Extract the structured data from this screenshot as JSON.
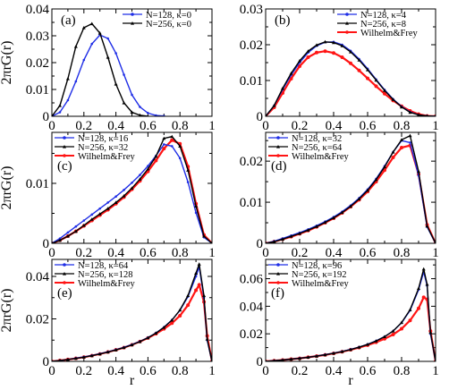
{
  "colors": {
    "blue": "#1f2ee6",
    "black": "#000000",
    "red": "#ff1414"
  },
  "chart_data": [
    {
      "type": "line",
      "panel_label": "(a)",
      "ylabel": "2πrG(r)",
      "xlabel": "",
      "xlim": [
        0,
        1
      ],
      "ylim": [
        0,
        0.04
      ],
      "xticks": [
        "0",
        "0.2",
        "0.4",
        "0.6",
        "0.8",
        "1"
      ],
      "yticks": [
        {
          "v": 0,
          "t": "0"
        },
        {
          "v": 0.01,
          "t": "0.01"
        },
        {
          "v": 0.02,
          "t": "0.02"
        },
        {
          "v": 0.03,
          "t": "0.03"
        },
        {
          "v": 0.04,
          "t": "0.04"
        }
      ],
      "legend": "top-right",
      "series": [
        {
          "name": "N=128, κ=0",
          "color": "blue",
          "x": [
            0,
            0.05,
            0.1,
            0.15,
            0.2,
            0.25,
            0.3,
            0.35,
            0.4,
            0.45,
            0.5,
            0.55,
            0.6,
            0.65,
            0.7
          ],
          "y": [
            0,
            0.0015,
            0.006,
            0.013,
            0.021,
            0.027,
            0.0303,
            0.029,
            0.0235,
            0.0155,
            0.008,
            0.0035,
            0.0012,
            0.0003,
            0.0001
          ]
        },
        {
          "name": "N=256, κ=0",
          "color": "black",
          "x": [
            0,
            0.05,
            0.1,
            0.15,
            0.2,
            0.25,
            0.3,
            0.35,
            0.4,
            0.45,
            0.5,
            0.55,
            0.6
          ],
          "y": [
            0,
            0.004,
            0.014,
            0.026,
            0.033,
            0.0345,
            0.031,
            0.022,
            0.012,
            0.005,
            0.0015,
            0.0004,
            0
          ]
        }
      ]
    },
    {
      "type": "line",
      "panel_label": "(b)",
      "ylabel": "",
      "xlabel": "",
      "xlim": [
        0,
        1
      ],
      "ylim": [
        0,
        0.03
      ],
      "xticks": [
        "0",
        "0.2",
        "0.4",
        "0.6",
        "0.8",
        "1"
      ],
      "yticks": [
        {
          "v": 0,
          "t": "0"
        },
        {
          "v": 0.01,
          "t": "0.01"
        },
        {
          "v": 0.02,
          "t": "0.02"
        },
        {
          "v": 0.03,
          "t": "0.03"
        }
      ],
      "legend": "top-right",
      "series": [
        {
          "name": "N=128, κ=4",
          "color": "blue",
          "x": [
            0,
            0.05,
            0.1,
            0.15,
            0.2,
            0.25,
            0.3,
            0.35,
            0.4,
            0.45,
            0.5,
            0.55,
            0.6,
            0.65,
            0.7,
            0.75,
            0.8,
            0.85,
            0.9,
            0.95,
            1
          ],
          "y": [
            0,
            0.003,
            0.0075,
            0.0115,
            0.015,
            0.0178,
            0.0197,
            0.0207,
            0.0208,
            0.02,
            0.0183,
            0.016,
            0.0133,
            0.0103,
            0.0074,
            0.0048,
            0.0027,
            0.0012,
            0.0004,
            0.0001,
            0
          ]
        },
        {
          "name": "N=256, κ=8",
          "color": "black",
          "x": [
            0,
            0.05,
            0.1,
            0.15,
            0.2,
            0.25,
            0.3,
            0.35,
            0.4,
            0.45,
            0.5,
            0.55,
            0.6,
            0.65,
            0.7,
            0.75,
            0.8,
            0.85,
            0.9,
            0.95,
            1
          ],
          "y": [
            0,
            0.003,
            0.0078,
            0.012,
            0.0155,
            0.0182,
            0.0199,
            0.0208,
            0.0206,
            0.0197,
            0.018,
            0.0157,
            0.013,
            0.0101,
            0.0072,
            0.0047,
            0.0026,
            0.0011,
            0.0004,
            0.0001,
            0
          ]
        },
        {
          "name": "Wilhelm&Frey",
          "color": "red",
          "x": [
            0,
            0.05,
            0.1,
            0.15,
            0.2,
            0.25,
            0.3,
            0.35,
            0.4,
            0.45,
            0.5,
            0.55,
            0.6,
            0.65,
            0.7,
            0.75,
            0.8,
            0.85,
            0.9,
            0.95,
            1
          ],
          "y": [
            0,
            0.0025,
            0.0065,
            0.0105,
            0.014,
            0.0165,
            0.0178,
            0.0182,
            0.0177,
            0.0165,
            0.0148,
            0.0128,
            0.0106,
            0.0084,
            0.0063,
            0.0044,
            0.0028,
            0.0015,
            0.0006,
            0.0001,
            0
          ]
        }
      ]
    },
    {
      "type": "line",
      "panel_label": "(c)",
      "ylabel": "2πrG(r)",
      "xlabel": "",
      "xlim": [
        0,
        1
      ],
      "ylim": [
        0,
        0.0185
      ],
      "xticks": [
        "0",
        "0.2",
        "0.4",
        "0.6",
        "0.8",
        "1"
      ],
      "yticks": [
        {
          "v": 0,
          "t": "0"
        },
        {
          "v": 0.01,
          "t": "0.01"
        }
      ],
      "legend": "top-left",
      "series": [
        {
          "name": "N=128, κ=16",
          "color": "blue",
          "x": [
            0,
            0.05,
            0.1,
            0.15,
            0.2,
            0.25,
            0.3,
            0.35,
            0.4,
            0.45,
            0.5,
            0.55,
            0.6,
            0.65,
            0.7,
            0.75,
            0.8,
            0.85,
            0.9,
            0.95,
            1
          ],
          "y": [
            0,
            0.0008,
            0.0018,
            0.0028,
            0.0038,
            0.0048,
            0.0058,
            0.0068,
            0.0078,
            0.0089,
            0.0101,
            0.0114,
            0.0129,
            0.0146,
            0.0165,
            0.0162,
            0.0142,
            0.0102,
            0.0051,
            0.001,
            0
          ]
        },
        {
          "name": "N=256, κ=32",
          "color": "black",
          "x": [
            0,
            0.05,
            0.1,
            0.15,
            0.2,
            0.25,
            0.3,
            0.35,
            0.4,
            0.45,
            0.5,
            0.55,
            0.6,
            0.65,
            0.7,
            0.75,
            0.8,
            0.85,
            0.9,
            0.95,
            1
          ],
          "y": [
            0,
            0.0005,
            0.0012,
            0.002,
            0.003,
            0.004,
            0.0049,
            0.0058,
            0.0068,
            0.0079,
            0.0092,
            0.0107,
            0.0124,
            0.0145,
            0.0175,
            0.0178,
            0.0162,
            0.0122,
            0.0062,
            0.0012,
            0
          ]
        },
        {
          "name": "Wilhelm&Frey",
          "color": "red",
          "x": [
            0,
            0.05,
            0.1,
            0.15,
            0.2,
            0.25,
            0.3,
            0.35,
            0.4,
            0.45,
            0.5,
            0.55,
            0.6,
            0.65,
            0.7,
            0.75,
            0.8,
            0.85,
            0.9,
            0.95,
            1
          ],
          "y": [
            0,
            0.0005,
            0.0012,
            0.002,
            0.0029,
            0.0038,
            0.0047,
            0.0056,
            0.0066,
            0.0077,
            0.009,
            0.0104,
            0.012,
            0.0138,
            0.0158,
            0.0172,
            0.0166,
            0.0128,
            0.0066,
            0.0014,
            0
          ]
        }
      ]
    },
    {
      "type": "line",
      "panel_label": "(d)",
      "ylabel": "",
      "xlabel": "",
      "xlim": [
        0,
        1
      ],
      "ylim": [
        0,
        0.027
      ],
      "xticks": [
        "0",
        "0.2",
        "0.4",
        "0.6",
        "0.8",
        "1"
      ],
      "yticks": [
        {
          "v": 0,
          "t": "0"
        },
        {
          "v": 0.01,
          "t": "0.01"
        },
        {
          "v": 0.02,
          "t": "0.02"
        }
      ],
      "legend": "top-left",
      "series": [
        {
          "name": "N=128, κ=32",
          "color": "blue",
          "x": [
            0,
            0.05,
            0.1,
            0.15,
            0.2,
            0.25,
            0.3,
            0.35,
            0.4,
            0.45,
            0.5,
            0.55,
            0.6,
            0.65,
            0.7,
            0.75,
            0.8,
            0.85,
            0.9,
            0.95,
            1
          ],
          "y": [
            0,
            0.0005,
            0.0012,
            0.0019,
            0.0026,
            0.0034,
            0.0043,
            0.0053,
            0.0064,
            0.0077,
            0.0092,
            0.011,
            0.0131,
            0.0157,
            0.0188,
            0.0222,
            0.025,
            0.0245,
            0.0165,
            0.004,
            0
          ]
        },
        {
          "name": "N=256, κ=64",
          "color": "black",
          "x": [
            0,
            0.05,
            0.1,
            0.15,
            0.2,
            0.25,
            0.3,
            0.35,
            0.4,
            0.45,
            0.5,
            0.55,
            0.6,
            0.65,
            0.7,
            0.75,
            0.8,
            0.85,
            0.9,
            0.95,
            1
          ],
          "y": [
            0,
            0.0004,
            0.001,
            0.0017,
            0.0024,
            0.0032,
            0.0041,
            0.0051,
            0.0062,
            0.0075,
            0.009,
            0.0108,
            0.0129,
            0.0155,
            0.0186,
            0.0222,
            0.0252,
            0.0262,
            0.0175,
            0.0042,
            0
          ]
        },
        {
          "name": "Wilhelm&Frey",
          "color": "red",
          "x": [
            0,
            0.05,
            0.1,
            0.15,
            0.2,
            0.25,
            0.3,
            0.35,
            0.4,
            0.45,
            0.5,
            0.55,
            0.6,
            0.65,
            0.7,
            0.75,
            0.8,
            0.85,
            0.9,
            0.95,
            1
          ],
          "y": [
            0,
            0.0004,
            0.001,
            0.0016,
            0.0023,
            0.0031,
            0.004,
            0.005,
            0.0061,
            0.0074,
            0.0089,
            0.0106,
            0.0126,
            0.015,
            0.0178,
            0.0209,
            0.0233,
            0.0238,
            0.0168,
            0.0045,
            0
          ]
        }
      ]
    },
    {
      "type": "line",
      "panel_label": "(e)",
      "ylabel": "2πrG(r)",
      "xlabel": "r",
      "xlim": [
        0,
        1
      ],
      "ylim": [
        0,
        0.048
      ],
      "xticks": [
        "0",
        "0.2",
        "0.4",
        "0.6",
        "0.8",
        "1"
      ],
      "yticks": [
        {
          "v": 0,
          "t": "0"
        },
        {
          "v": 0.02,
          "t": "0.02"
        },
        {
          "v": 0.04,
          "t": "0.04"
        }
      ],
      "legend": "top-left",
      "series": [
        {
          "name": "N=128, κ=64",
          "color": "blue",
          "x": [
            0,
            0.05,
            0.1,
            0.15,
            0.2,
            0.25,
            0.3,
            0.35,
            0.4,
            0.45,
            0.5,
            0.55,
            0.6,
            0.65,
            0.7,
            0.75,
            0.8,
            0.85,
            0.9,
            0.92,
            0.95,
            0.97,
            1
          ],
          "y": [
            0,
            0.0004,
            0.0009,
            0.0015,
            0.0021,
            0.0028,
            0.0036,
            0.0045,
            0.0055,
            0.0066,
            0.0079,
            0.0094,
            0.0112,
            0.0134,
            0.0161,
            0.0195,
            0.024,
            0.0305,
            0.04,
            0.0445,
            0.03,
            0.01,
            0
          ]
        },
        {
          "name": "N=256, κ=128",
          "color": "black",
          "x": [
            0,
            0.05,
            0.1,
            0.15,
            0.2,
            0.25,
            0.3,
            0.35,
            0.4,
            0.45,
            0.5,
            0.55,
            0.6,
            0.65,
            0.7,
            0.75,
            0.8,
            0.85,
            0.9,
            0.92,
            0.95,
            0.97,
            1
          ],
          "y": [
            0,
            0.0004,
            0.0009,
            0.0014,
            0.002,
            0.0027,
            0.0035,
            0.0044,
            0.0054,
            0.0065,
            0.0078,
            0.0093,
            0.0111,
            0.0133,
            0.016,
            0.0194,
            0.0242,
            0.031,
            0.0415,
            0.0458,
            0.031,
            0.0105,
            0
          ]
        },
        {
          "name": "Wilhelm&Frey",
          "color": "red",
          "x": [
            0,
            0.05,
            0.1,
            0.15,
            0.2,
            0.25,
            0.3,
            0.35,
            0.4,
            0.45,
            0.5,
            0.55,
            0.6,
            0.65,
            0.7,
            0.75,
            0.8,
            0.85,
            0.9,
            0.92,
            0.95,
            0.97,
            1
          ],
          "y": [
            0,
            0.0004,
            0.0009,
            0.0014,
            0.002,
            0.0027,
            0.0035,
            0.0044,
            0.0054,
            0.0065,
            0.0078,
            0.0093,
            0.011,
            0.013,
            0.0153,
            0.018,
            0.0215,
            0.0265,
            0.0335,
            0.036,
            0.028,
            0.012,
            0
          ]
        }
      ]
    },
    {
      "type": "line",
      "panel_label": "(f)",
      "ylabel": "",
      "xlabel": "r",
      "xlim": [
        0,
        1
      ],
      "ylim": [
        0,
        0.074
      ],
      "xticks": [
        "0",
        "0.2",
        "0.4",
        "0.6",
        "0.8",
        "1"
      ],
      "yticks": [
        {
          "v": 0,
          "t": "0"
        },
        {
          "v": 0.02,
          "t": "0.02"
        },
        {
          "v": 0.04,
          "t": "0.04"
        },
        {
          "v": 0.06,
          "t": "0.06"
        }
      ],
      "legend": "top-left",
      "series": [
        {
          "name": "N=128, κ=96",
          "color": "blue",
          "x": [
            0,
            0.05,
            0.1,
            0.15,
            0.2,
            0.25,
            0.3,
            0.35,
            0.4,
            0.45,
            0.5,
            0.55,
            0.6,
            0.65,
            0.7,
            0.75,
            0.8,
            0.85,
            0.9,
            0.93,
            0.95,
            0.97,
            1
          ],
          "y": [
            0,
            0.0005,
            0.001,
            0.0016,
            0.0023,
            0.003,
            0.0039,
            0.0049,
            0.006,
            0.0072,
            0.0087,
            0.0104,
            0.0124,
            0.0149,
            0.018,
            0.022,
            0.028,
            0.037,
            0.052,
            0.065,
            0.055,
            0.02,
            0
          ]
        },
        {
          "name": "N=256, κ=192",
          "color": "black",
          "x": [
            0,
            0.05,
            0.1,
            0.15,
            0.2,
            0.25,
            0.3,
            0.35,
            0.4,
            0.45,
            0.5,
            0.55,
            0.6,
            0.65,
            0.7,
            0.75,
            0.8,
            0.85,
            0.9,
            0.93,
            0.95,
            0.97,
            1
          ],
          "y": [
            0,
            0.0005,
            0.001,
            0.0016,
            0.0022,
            0.003,
            0.0038,
            0.0048,
            0.0059,
            0.0071,
            0.0086,
            0.0103,
            0.0123,
            0.0148,
            0.0179,
            0.022,
            0.0282,
            0.0375,
            0.053,
            0.067,
            0.056,
            0.021,
            0
          ]
        },
        {
          "name": "Wilhelm&Frey",
          "color": "red",
          "x": [
            0,
            0.05,
            0.1,
            0.15,
            0.2,
            0.25,
            0.3,
            0.35,
            0.4,
            0.45,
            0.5,
            0.55,
            0.6,
            0.65,
            0.7,
            0.75,
            0.8,
            0.85,
            0.9,
            0.93,
            0.95,
            0.97,
            1
          ],
          "y": [
            0,
            0.0005,
            0.001,
            0.0016,
            0.0022,
            0.003,
            0.0038,
            0.0047,
            0.0058,
            0.007,
            0.0084,
            0.01,
            0.0118,
            0.0139,
            0.0164,
            0.0195,
            0.0237,
            0.0297,
            0.0385,
            0.0465,
            0.045,
            0.022,
            0
          ]
        }
      ]
    }
  ]
}
